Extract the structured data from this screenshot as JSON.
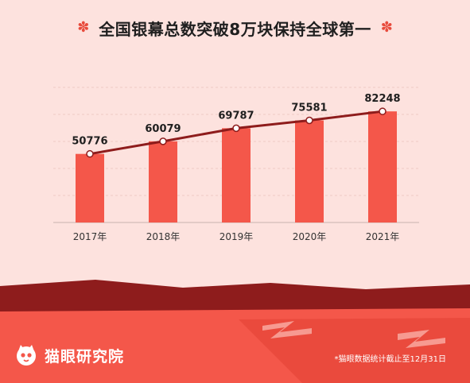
{
  "header": {
    "title": "全国银幕总数突破8万块保持全球第一",
    "left_ornament_icon": "flower-icon",
    "right_ornament_icon": "flower-icon"
  },
  "footer": {
    "brand": "猫眼研究院",
    "brand_icon": "cat-logo-icon",
    "note": "*猫眼数据统计截止至12月31日"
  },
  "colors": {
    "bar": "#f4574a",
    "line": "#8e1c1c",
    "accent": "#e84b3c",
    "footer_band": "#f4574a"
  },
  "chart_data": {
    "type": "bar",
    "categories": [
      "2017年",
      "2018年",
      "2019年",
      "2020年",
      "2021年"
    ],
    "values": [
      50776,
      60079,
      69787,
      75581,
      82248
    ],
    "overlay": "line",
    "ylim": [
      0,
      100000
    ],
    "grid": true,
    "title": "",
    "xlabel": "",
    "ylabel": ""
  }
}
